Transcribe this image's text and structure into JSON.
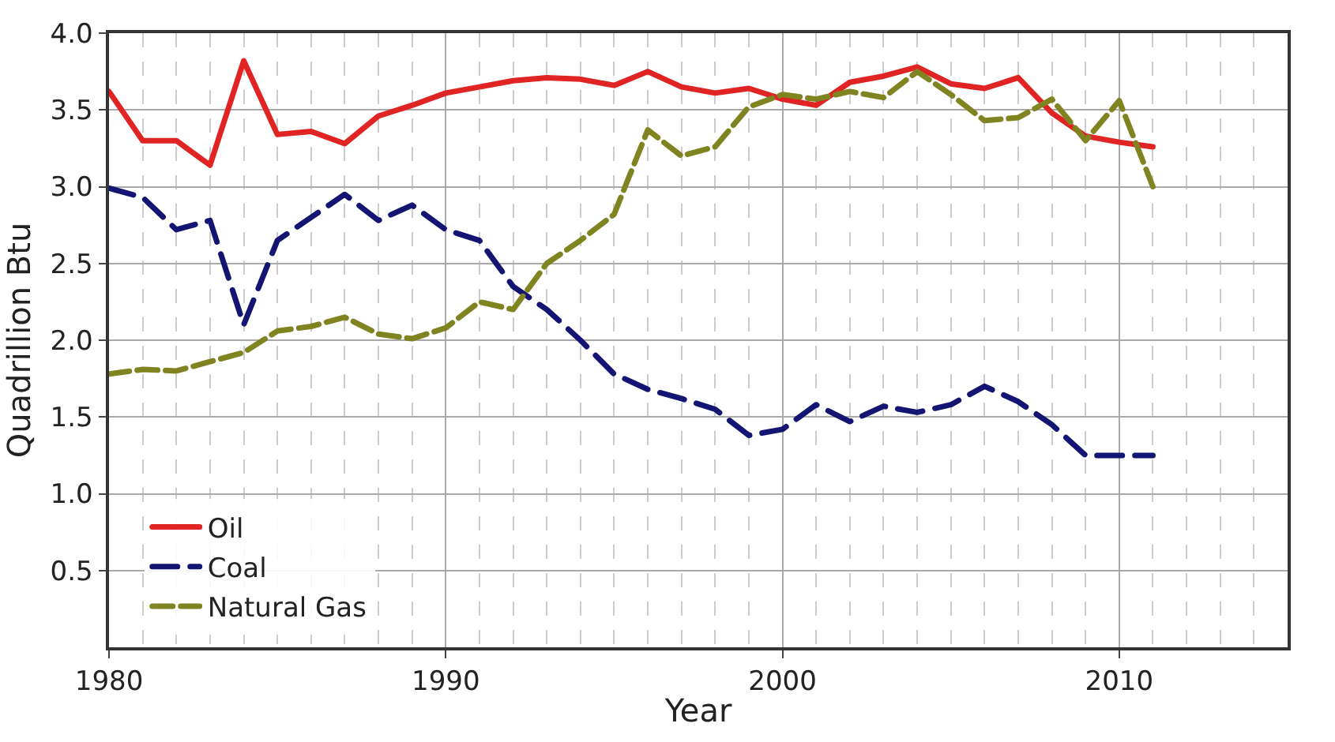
{
  "chart_data": {
    "type": "line",
    "xlabel": "Year",
    "ylabel": "Quadrillion Btu",
    "x": [
      1980,
      1981,
      1982,
      1983,
      1984,
      1985,
      1986,
      1987,
      1988,
      1989,
      1990,
      1991,
      1992,
      1993,
      1994,
      1995,
      1996,
      1997,
      1998,
      1999,
      2000,
      2001,
      2002,
      2003,
      2004,
      2005,
      2006,
      2007,
      2008,
      2009,
      2010,
      2011
    ],
    "series": [
      {
        "name": "Oil",
        "color": "#e02424",
        "line_style": "solid",
        "values": [
          3.62,
          3.3,
          3.3,
          3.14,
          3.82,
          3.34,
          3.36,
          3.28,
          3.46,
          3.53,
          3.61,
          3.65,
          3.69,
          3.71,
          3.7,
          3.66,
          3.75,
          3.65,
          3.61,
          3.64,
          3.57,
          3.53,
          3.68,
          3.72,
          3.78,
          3.67,
          3.64,
          3.71,
          3.48,
          3.33,
          3.29,
          3.26
        ]
      },
      {
        "name": "Coal",
        "color": "#141472",
        "line_style": "dashed",
        "values": [
          2.99,
          2.93,
          2.72,
          2.78,
          2.1,
          2.65,
          2.8,
          2.95,
          2.78,
          2.88,
          2.72,
          2.65,
          2.35,
          2.2,
          2.0,
          1.78,
          1.68,
          1.62,
          1.55,
          1.38,
          1.42,
          1.58,
          1.47,
          1.57,
          1.53,
          1.58,
          1.7,
          1.6,
          1.45,
          1.25,
          1.25,
          1.25
        ]
      },
      {
        "name": "Natural Gas",
        "color": "#7f8420",
        "line_style": "dashed",
        "values": [
          1.78,
          1.81,
          1.8,
          1.86,
          1.92,
          2.06,
          2.09,
          2.15,
          2.04,
          2.01,
          2.08,
          2.25,
          2.2,
          2.5,
          2.65,
          2.82,
          3.37,
          3.2,
          3.26,
          3.52,
          3.6,
          3.57,
          3.62,
          3.58,
          3.75,
          3.6,
          3.43,
          3.45,
          3.57,
          3.3,
          3.56,
          3.0
        ]
      }
    ],
    "xlim": [
      1980,
      2015
    ],
    "xticks": [
      1980,
      1990,
      2000,
      2010
    ],
    "ylim": [
      0,
      4
    ],
    "yticks": [
      {
        "value": 0.5,
        "label": "0.5"
      },
      {
        "value": 1,
        "label": "1.0"
      },
      {
        "value": 1.5,
        "label": "1.5"
      },
      {
        "value": 2,
        "label": "2.0"
      },
      {
        "value": 2.5,
        "label": "2.5"
      },
      {
        "value": 3,
        "label": "3.0"
      },
      {
        "value": 3.5,
        "label": "3.5"
      },
      {
        "value": 4,
        "label": "4.0"
      }
    ],
    "grid": true,
    "legend": "bottom left",
    "marker": "none"
  }
}
